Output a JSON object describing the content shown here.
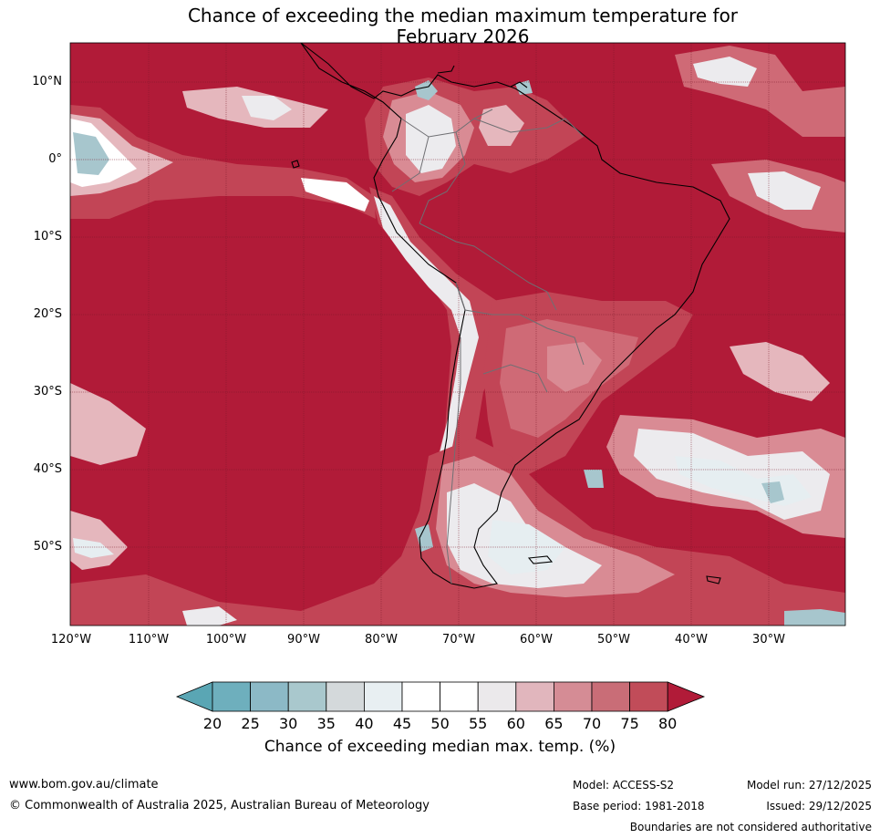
{
  "title_line1": "Chance of exceeding the median maximum temperature for",
  "title_line2": "February 2026",
  "map": {
    "lat_labels": [
      "10°N",
      "0°",
      "10°S",
      "20°S",
      "30°S",
      "40°S",
      "50°S"
    ],
    "lon_labels": [
      "120°W",
      "110°W",
      "100°W",
      "90°W",
      "80°W",
      "70°W",
      "60°W",
      "50°W",
      "40°W",
      "30°W"
    ],
    "colors": {
      "high": "#b11b38",
      "band75": "#c24556",
      "band70": "#cf6a76",
      "band65": "#d98b94",
      "band60": "#e5b7bd",
      "near": "#ecebee",
      "white": "#ffffff",
      "low40": "#e6eef1",
      "low35": "#cfd7da",
      "low30": "#a7c6cd",
      "low25": "#87b7c3",
      "low20": "#5aa6b4"
    }
  },
  "colorbar": {
    "ticks": [
      "20",
      "25",
      "30",
      "35",
      "40",
      "45",
      "50",
      "55",
      "60",
      "65",
      "70",
      "75",
      "80"
    ],
    "colors": [
      "#5aa6b4",
      "#6eafbd",
      "#8cb9c6",
      "#a9c8cd",
      "#d4d9db",
      "#e8eff2",
      "#ffffff",
      "#ffffff",
      "#ebe9eb",
      "#e1b6bd",
      "#d58c95",
      "#c96d77",
      "#c14c59",
      "#b11b38"
    ],
    "label": "Chance of exceeding median max. temp. (%)"
  },
  "footer": {
    "website": "www.bom.gov.au/climate",
    "copyright": "© Commonwealth of Australia 2025, Australian Bureau of Meteorology",
    "model": "Model: ACCESS-S2",
    "base_period": "Base period: 1981-2018",
    "model_run": "Model run: 27/12/2025",
    "issued": "Issued: 29/12/2025",
    "disclaimer": "Boundaries are not considered authoritative"
  }
}
